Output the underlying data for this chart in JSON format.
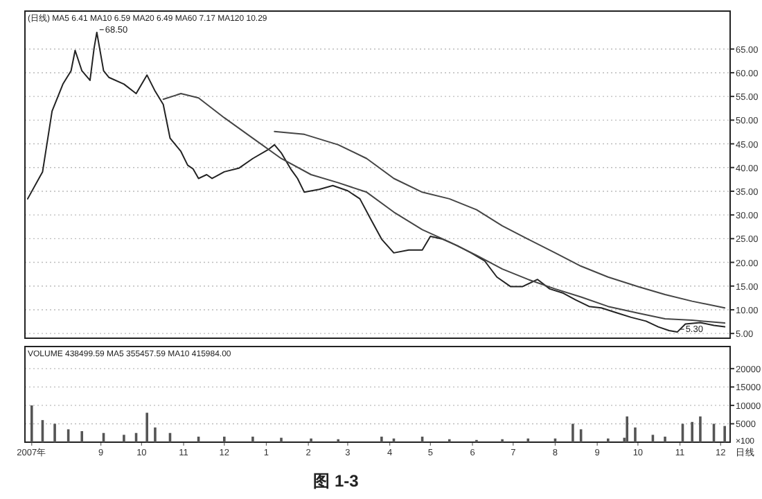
{
  "chart_data": [
    {
      "type": "line",
      "annotations": [
        "(日线) MA5 6.41 MA10 6.59 MA20 6.49 MA60 7.17 MA120 10.29",
        {
          "text": "68.50",
          "x": "2007-08-29",
          "y": 68.5
        },
        {
          "text": "5.30",
          "x": "2008-10-30",
          "y": 5.3
        }
      ],
      "series": [
        {
          "color": "#222222",
          "x": [
            "2007-07-09",
            "2007-07-20",
            "2007-07-27",
            "2007-08-04",
            "2007-08-10",
            "2007-08-13",
            "2007-08-18",
            "2007-08-24",
            "2007-08-27",
            "2007-08-29",
            "2007-09-03",
            "2007-09-07",
            "2007-09-18",
            "2007-09-27",
            "2007-10-05",
            "2007-10-11",
            "2007-10-17",
            "2007-10-22",
            "2007-10-30",
            "2007-11-04",
            "2007-11-08",
            "2007-11-12",
            "2007-11-18",
            "2007-11-22",
            "2007-12-01",
            "2007-12-12",
            "2007-12-22",
            "2008-01-03",
            "2008-01-07",
            "2008-01-12",
            "2008-01-19",
            "2008-01-24",
            "2008-01-29",
            "2008-02-09",
            "2008-02-19",
            "2008-03-01",
            "2008-03-10",
            "2008-03-18",
            "2008-03-26",
            "2008-04-04",
            "2008-04-15",
            "2008-04-25",
            "2008-05-01",
            "2008-05-10",
            "2008-05-21",
            "2008-05-31",
            "2008-06-10",
            "2008-06-19",
            "2008-06-29",
            "2008-07-08",
            "2008-07-19",
            "2008-07-28",
            "2008-08-07",
            "2008-08-16",
            "2008-08-26",
            "2008-09-04",
            "2008-09-16",
            "2008-09-26",
            "2008-10-07",
            "2008-10-16",
            "2008-10-24",
            "2008-10-30",
            "2008-11-05",
            "2008-11-16",
            "2008-11-26",
            "2008-12-04"
          ],
          "values": [
            33.4,
            39.1,
            51.9,
            57.6,
            60.4,
            64.7,
            60.4,
            58.4,
            65.2,
            68.5,
            60.4,
            59.0,
            57.6,
            55.6,
            59.5,
            56.1,
            53.3,
            46.2,
            43.4,
            40.5,
            39.7,
            37.7,
            38.5,
            37.7,
            39.1,
            39.9,
            41.9,
            43.9,
            44.8,
            43.1,
            39.7,
            37.7,
            34.8,
            35.4,
            36.2,
            35.1,
            33.4,
            29.1,
            24.9,
            22.0,
            22.6,
            22.6,
            25.5,
            24.9,
            23.5,
            22.0,
            20.3,
            16.9,
            14.9,
            14.9,
            16.4,
            14.4,
            13.5,
            12.1,
            10.7,
            10.4,
            9.3,
            8.4,
            7.6,
            6.4,
            5.6,
            5.3,
            7.0,
            7.3,
            6.7,
            6.4
          ]
        },
        {
          "color": "#444444",
          "x": [
            "2007-10-17",
            "2007-10-30",
            "2007-11-12",
            "2007-12-01",
            "2007-12-22",
            "2008-01-12",
            "2008-02-03",
            "2008-02-23",
            "2008-03-15",
            "2008-04-04",
            "2008-04-25",
            "2008-05-15",
            "2008-06-04",
            "2008-06-23",
            "2008-07-12",
            "2008-08-01",
            "2008-08-20",
            "2008-09-09",
            "2008-10-01",
            "2008-10-21",
            "2008-11-10",
            "2008-12-04"
          ],
          "values": [
            54.4,
            55.6,
            54.7,
            50.5,
            46.2,
            41.9,
            38.5,
            36.8,
            34.8,
            30.6,
            26.9,
            24.3,
            21.5,
            18.6,
            16.4,
            14.4,
            12.7,
            10.7,
            9.3,
            8.1,
            7.8,
            7.2
          ]
        },
        {
          "color": "#444444",
          "x": [
            "2008-01-07",
            "2008-01-29",
            "2008-02-23",
            "2008-03-15",
            "2008-04-04",
            "2008-04-25",
            "2008-05-15",
            "2008-06-04",
            "2008-06-23",
            "2008-07-12",
            "2008-08-01",
            "2008-08-20",
            "2008-09-09",
            "2008-10-01",
            "2008-10-21",
            "2008-11-10",
            "2008-12-04"
          ],
          "values": [
            47.6,
            47.0,
            44.8,
            41.9,
            37.7,
            34.8,
            33.4,
            31.1,
            27.7,
            24.9,
            22.0,
            19.2,
            16.9,
            14.9,
            13.2,
            11.8,
            10.4
          ]
        }
      ],
      "xlim": [
        "2007-07-07",
        "2008-12-08"
      ],
      "ylim": [
        4,
        73
      ],
      "yticks": [
        {
          "value": 5,
          "label": "5.00"
        },
        {
          "value": 10,
          "label": "10.00"
        },
        {
          "value": 15,
          "label": "15.00"
        },
        {
          "value": 20,
          "label": "20.00"
        },
        {
          "value": 25,
          "label": "25.00"
        },
        {
          "value": 30,
          "label": "30.00"
        },
        {
          "value": 35,
          "label": "35.00"
        },
        {
          "value": 40,
          "label": "40.00"
        },
        {
          "value": 45,
          "label": "45.00"
        },
        {
          "value": 50,
          "label": "50.00"
        },
        {
          "value": 55,
          "label": "55.00"
        },
        {
          "value": 60,
          "label": "60.00"
        },
        {
          "value": 65,
          "label": "65.00"
        }
      ],
      "tick_labels": "y",
      "grid": "y"
    },
    {
      "type": "bar",
      "ylabel": "×100",
      "annotations": [
        "VOLUME 438499.59 MA5 355457.59 MA10 415984.00",
        "日线",
        "图 1-3"
      ],
      "x": [
        "2007-07-12",
        "2007-07-20",
        "2007-07-29",
        "2007-08-08",
        "2007-08-18",
        "2007-09-03",
        "2007-09-18",
        "2007-09-27",
        "2007-10-05",
        "2007-10-11",
        "2007-10-22",
        "2007-11-12",
        "2007-12-01",
        "2007-12-22",
        "2008-01-12",
        "2008-02-03",
        "2008-02-23",
        "2008-03-26",
        "2008-04-04",
        "2008-04-25",
        "2008-05-15",
        "2008-06-04",
        "2008-06-23",
        "2008-07-12",
        "2008-08-01",
        "2008-08-14",
        "2008-08-20",
        "2008-09-09",
        "2008-09-21",
        "2008-09-23",
        "2008-09-29",
        "2008-10-12",
        "2008-10-21",
        "2008-11-03",
        "2008-11-10",
        "2008-11-16",
        "2008-11-26",
        "2008-12-04"
      ],
      "values": [
        10000,
        6000,
        5000,
        3500,
        3000,
        2500,
        2000,
        2500,
        8000,
        4000,
        2500,
        1500,
        1500,
        1500,
        1200,
        1000,
        800,
        1500,
        1000,
        1500,
        800,
        600,
        800,
        1000,
        1000,
        5000,
        3500,
        1000,
        1200,
        7000,
        4000,
        2000,
        1500,
        5000,
        5500,
        7000,
        5000,
        4400
      ],
      "color": "#555555",
      "xlim": [
        "2007-07-07",
        "2008-12-08"
      ],
      "ylim": [
        0,
        26000
      ],
      "yticks": [
        5000,
        10000,
        15000,
        20000
      ],
      "xticks": [
        {
          "value": "2007-07-12",
          "label": "2007年"
        },
        {
          "value": "2007-09-01",
          "label": "9"
        },
        {
          "value": "2007-10-01",
          "label": "10"
        },
        {
          "value": "2007-11-01",
          "label": "11"
        },
        {
          "value": "2007-12-01",
          "label": "12"
        },
        {
          "value": "2008-01-01",
          "label": "1"
        },
        {
          "value": "2008-02-01",
          "label": "2"
        },
        {
          "value": "2008-03-01",
          "label": "3"
        },
        {
          "value": "2008-04-01",
          "label": "4"
        },
        {
          "value": "2008-05-01",
          "label": "5"
        },
        {
          "value": "2008-06-01",
          "label": "6"
        },
        {
          "value": "2008-07-01",
          "label": "7"
        },
        {
          "value": "2008-08-01",
          "label": "8"
        },
        {
          "value": "2008-09-01",
          "label": "9"
        },
        {
          "value": "2008-10-01",
          "label": "10"
        },
        {
          "value": "2008-11-01",
          "label": "11"
        },
        {
          "value": "2008-12-01",
          "label": "12"
        }
      ],
      "grid": "y"
    }
  ]
}
